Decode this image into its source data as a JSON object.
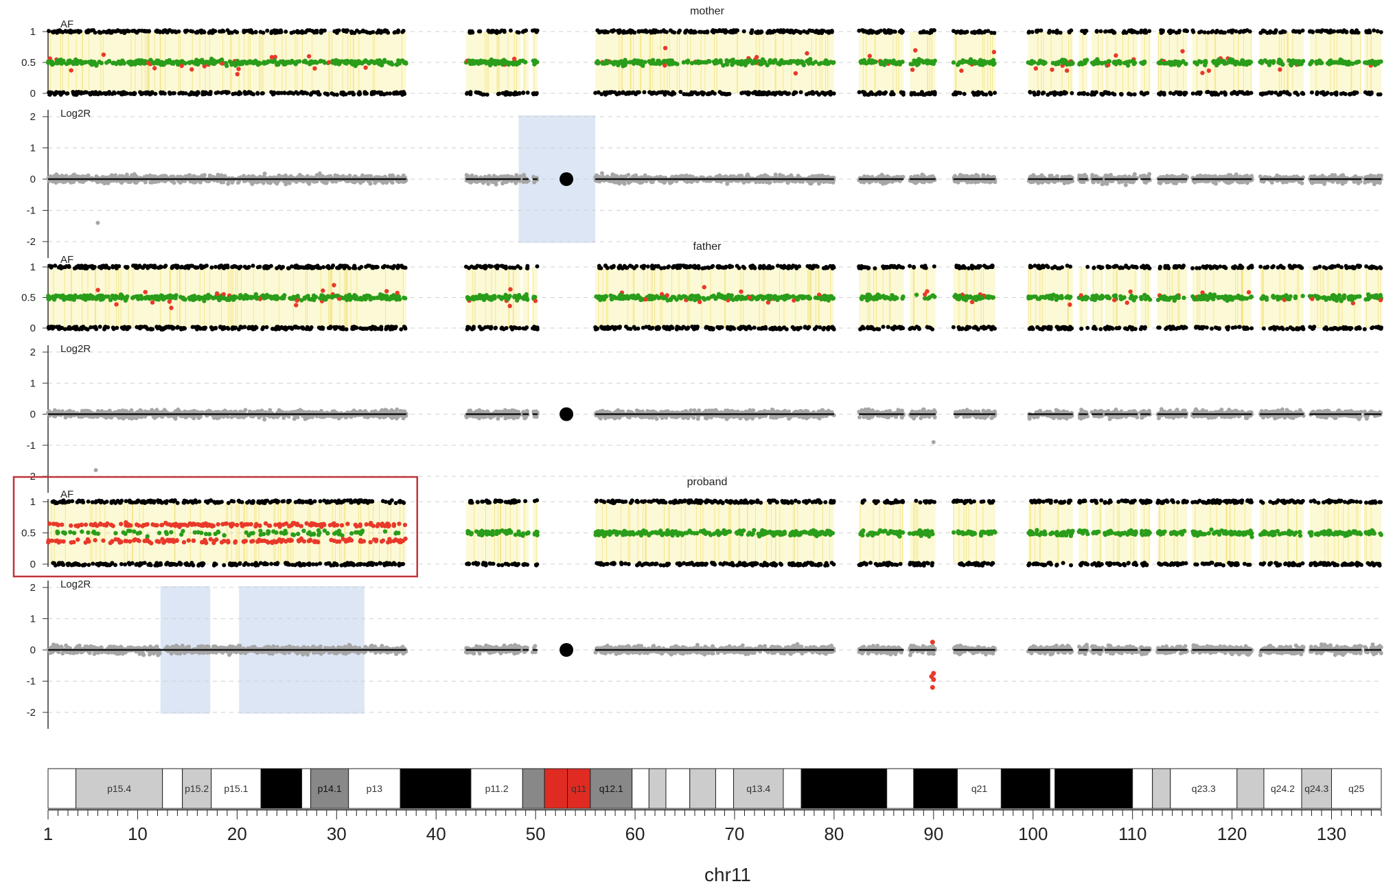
{
  "chart_data": {
    "type": "scatter",
    "x_axis": {
      "label": "chr11",
      "range": [
        1,
        135
      ],
      "major_ticks": [
        1,
        10,
        20,
        30,
        40,
        50,
        60,
        70,
        80,
        90,
        100,
        110,
        120,
        130
      ],
      "unit_ticks_every": 1
    },
    "panels": [
      {
        "sample": "mother",
        "af": {
          "label": "AF",
          "ylim": [
            0,
            1
          ],
          "yticks": [
            "1",
            "0.5",
            "0"
          ],
          "het_color": "#2a9d1a",
          "deviant_color": "#e8392a",
          "homo_color": "#000000",
          "highlight_color": "#fbf7c4"
        },
        "log2r": {
          "label": "Log2R",
          "ylim": [
            -2,
            2
          ],
          "yticks": [
            "2",
            "1",
            "0",
            "-1",
            "-2"
          ],
          "segment_mean": 0,
          "point_color": "#a6a6a6",
          "aberration_regions": [
            {
              "x0": 48.3,
              "x1": 56
            }
          ],
          "outliers": [
            {
              "x": 6,
              "y": -1.4
            }
          ],
          "red_points": []
        }
      },
      {
        "sample": "father",
        "af": {
          "label": "AF",
          "ylim": [
            0,
            1
          ],
          "yticks": [
            "1",
            "0.5",
            "0"
          ],
          "het_color": "#2a9d1a",
          "deviant_color": "#e8392a",
          "homo_color": "#000000",
          "highlight_color": "#fbf7c4"
        },
        "log2r": {
          "label": "Log2R",
          "ylim": [
            -2,
            2
          ],
          "yticks": [
            "2",
            "1",
            "0",
            "-1",
            "-2"
          ],
          "segment_mean": 0,
          "point_color": "#a6a6a6",
          "aberration_regions": [],
          "outliers": [
            {
              "x": 5.8,
              "y": -1.8
            },
            {
              "x": 90,
              "y": -0.9
            }
          ],
          "red_points": []
        }
      },
      {
        "sample": "proband",
        "highlighted_box_x": [
          1,
          37
        ],
        "af": {
          "label": "AF",
          "ylim": [
            0,
            1
          ],
          "yticks": [
            "1",
            "0.5",
            "0"
          ],
          "het_color": "#2a9d1a",
          "deviant_color": "#e8392a",
          "homo_color": "#000000",
          "highlight_color": "#fbf7c4",
          "deviant_bands": [
            {
              "x0": 1,
              "x1": 37,
              "upper": 0.63,
              "lower": 0.37
            }
          ]
        },
        "log2r": {
          "label": "Log2R",
          "ylim": [
            -2,
            2
          ],
          "yticks": [
            "2",
            "1",
            "0",
            "-1",
            "-2"
          ],
          "segment_mean": 0,
          "point_color": "#a6a6a6",
          "aberration_regions": [
            {
              "x0": 12.3,
              "x1": 17.3
            },
            {
              "x0": 20.2,
              "x1": 32.8
            }
          ],
          "outliers": [],
          "red_points": [
            {
              "x": 89.9,
              "y": 0.25
            },
            {
              "x": 90,
              "y": -0.75
            },
            {
              "x": 89.8,
              "y": -0.85
            },
            {
              "x": 90,
              "y": -0.95
            },
            {
              "x": 89.9,
              "y": -1.2
            }
          ]
        }
      }
    ],
    "data_clusters": [
      [
        1,
        37
      ],
      [
        43,
        48.5
      ],
      [
        48.7,
        49.3
      ],
      [
        49.7,
        50.2
      ],
      [
        56,
        80
      ],
      [
        82.5,
        87
      ],
      [
        87.6,
        90.2
      ],
      [
        92,
        96.2
      ],
      [
        99.5,
        104
      ],
      [
        104.6,
        105.5
      ],
      [
        105.9,
        107
      ],
      [
        107.2,
        110.5
      ],
      [
        110.8,
        111.8
      ],
      [
        112.5,
        115.5
      ],
      [
        116,
        122
      ],
      [
        122.8,
        127.2
      ],
      [
        127.8,
        133
      ],
      [
        133.3,
        135
      ]
    ],
    "centromere_x": 53.1,
    "ideogram": {
      "bands": [
        {
          "name": "",
          "start": 1,
          "end": 3.8,
          "stain": "white"
        },
        {
          "name": "p15.4",
          "start": 3.8,
          "end": 12.5,
          "stain": "lgray"
        },
        {
          "name": "",
          "start": 12.5,
          "end": 14.5,
          "stain": "white"
        },
        {
          "name": "p15.2",
          "start": 14.5,
          "end": 17.4,
          "stain": "lgray"
        },
        {
          "name": "p15.1",
          "start": 17.4,
          "end": 22.4,
          "stain": "white"
        },
        {
          "name": "",
          "start": 22.4,
          "end": 26.5,
          "stain": "black"
        },
        {
          "name": "",
          "start": 26.5,
          "end": 27.4,
          "stain": "white"
        },
        {
          "name": "p14.1",
          "start": 27.4,
          "end": 31.2,
          "stain": "dgray"
        },
        {
          "name": "p13",
          "start": 31.2,
          "end": 36.4,
          "stain": "white"
        },
        {
          "name": "",
          "start": 36.4,
          "end": 43.5,
          "stain": "black"
        },
        {
          "name": "p11.2",
          "start": 43.5,
          "end": 48.7,
          "stain": "white"
        },
        {
          "name": "",
          "start": 48.7,
          "end": 50.9,
          "stain": "dgray"
        },
        {
          "name": "",
          "start": 50.9,
          "end": 53.2,
          "stain": "red"
        },
        {
          "name": "q11",
          "start": 53.2,
          "end": 55.5,
          "stain": "red"
        },
        {
          "name": "q12.1",
          "start": 55.5,
          "end": 59.7,
          "stain": "dgray"
        },
        {
          "name": "",
          "start": 59.7,
          "end": 61.4,
          "stain": "white"
        },
        {
          "name": "",
          "start": 61.4,
          "end": 63.1,
          "stain": "lgray"
        },
        {
          "name": "",
          "start": 63.1,
          "end": 65.5,
          "stain": "white"
        },
        {
          "name": "",
          "start": 65.5,
          "end": 68.1,
          "stain": "lgray"
        },
        {
          "name": "",
          "start": 68.1,
          "end": 69.9,
          "stain": "white"
        },
        {
          "name": "q13.4",
          "start": 69.9,
          "end": 74.9,
          "stain": "lgray"
        },
        {
          "name": "",
          "start": 74.9,
          "end": 76.7,
          "stain": "white"
        },
        {
          "name": "",
          "start": 76.7,
          "end": 85.3,
          "stain": "black"
        },
        {
          "name": "",
          "start": 85.3,
          "end": 88,
          "stain": "white"
        },
        {
          "name": "",
          "start": 88,
          "end": 92.4,
          "stain": "black"
        },
        {
          "name": "q21",
          "start": 92.4,
          "end": 96.8,
          "stain": "white"
        },
        {
          "name": "",
          "start": 96.8,
          "end": 101.7,
          "stain": "black"
        },
        {
          "name": "",
          "start": 101.7,
          "end": 102.2,
          "stain": "white"
        },
        {
          "name": "",
          "start": 102.2,
          "end": 110,
          "stain": "black"
        },
        {
          "name": "",
          "start": 110,
          "end": 112,
          "stain": "white"
        },
        {
          "name": "",
          "start": 112,
          "end": 113.8,
          "stain": "lgray"
        },
        {
          "name": "q23.3",
          "start": 113.8,
          "end": 120.5,
          "stain": "white"
        },
        {
          "name": "",
          "start": 120.5,
          "end": 123.2,
          "stain": "lgray"
        },
        {
          "name": "q24.2",
          "start": 123.2,
          "end": 127,
          "stain": "white"
        },
        {
          "name": "q24.3",
          "start": 127,
          "end": 130,
          "stain": "lgray"
        },
        {
          "name": "q25",
          "start": 130,
          "end": 135,
          "stain": "white"
        }
      ],
      "stain_colors": {
        "white": "#ffffff",
        "lgray": "#cccccc",
        "dgray": "#888888",
        "black": "#000000",
        "red": "#e02b23"
      }
    }
  }
}
